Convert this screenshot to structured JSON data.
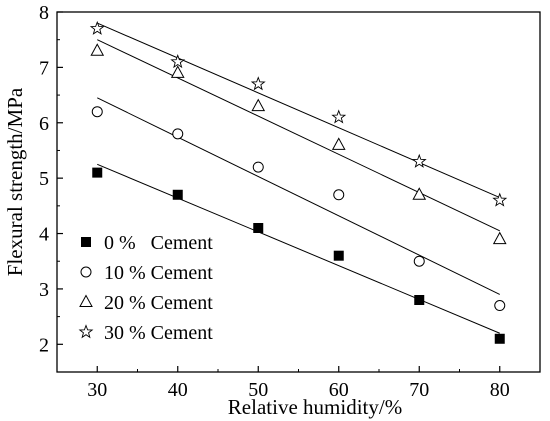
{
  "chart_data": {
    "type": "scatter",
    "xlabel": "Relative humidity/%",
    "ylabel": "Flexural strength/MPa",
    "xlim": [
      25,
      85
    ],
    "ylim": [
      1.5,
      8
    ],
    "xticks": [
      30,
      40,
      50,
      60,
      70,
      80
    ],
    "yticks": [
      2,
      3,
      4,
      5,
      6,
      7,
      8
    ],
    "grid": false,
    "legend_position": "bottom-left",
    "series": [
      {
        "name": "0 %   Cement",
        "marker": "filled-square",
        "x": [
          30,
          40,
          50,
          60,
          70,
          80
        ],
        "y": [
          5.1,
          4.7,
          4.1,
          3.6,
          2.8,
          2.1
        ],
        "fit": [
          [
            30,
            5.25
          ],
          [
            80,
            2.2
          ]
        ]
      },
      {
        "name": "10 % Cement",
        "marker": "open-circle",
        "x": [
          30,
          40,
          50,
          60,
          70,
          80
        ],
        "y": [
          6.2,
          5.8,
          5.2,
          4.7,
          3.5,
          2.7
        ],
        "fit": [
          [
            30,
            6.45
          ],
          [
            80,
            2.9
          ]
        ]
      },
      {
        "name": "20 % Cement",
        "marker": "open-triangle",
        "x": [
          30,
          40,
          50,
          60,
          70,
          80
        ],
        "y": [
          7.3,
          6.9,
          6.3,
          5.6,
          4.7,
          3.9
        ],
        "fit": [
          [
            30,
            7.5
          ],
          [
            80,
            4.05
          ]
        ]
      },
      {
        "name": "30 % Cement",
        "marker": "open-star",
        "x": [
          30,
          40,
          50,
          60,
          70,
          80
        ],
        "y": [
          7.7,
          7.1,
          6.7,
          6.1,
          5.3,
          4.6
        ],
        "fit": [
          [
            30,
            7.8
          ],
          [
            80,
            4.65
          ]
        ]
      }
    ]
  }
}
